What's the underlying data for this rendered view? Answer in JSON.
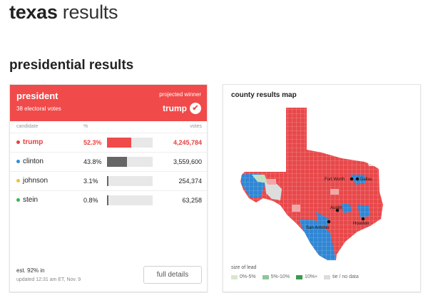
{
  "page": {
    "state": "texas",
    "results": "results",
    "section_title": "presidential results"
  },
  "race": {
    "title": "president",
    "electoral_votes": "38 electoral votes",
    "projected_label": "projected winner",
    "winner": "trump",
    "winner_color": "#f04a4a",
    "columns": {
      "candidate": "candidate",
      "pct": "%",
      "votes": "votes"
    },
    "candidates": [
      {
        "name": "trump",
        "pct": "52.3%",
        "votes": "4,245,784",
        "share": 0.523,
        "color": "#e8403f"
      },
      {
        "name": "clinton",
        "pct": "43.8%",
        "votes": "3,559,600",
        "share": 0.438,
        "color": "#2f8fd6"
      },
      {
        "name": "johnson",
        "pct": "3.1%",
        "votes": "254,374",
        "share": 0.031,
        "color": "#e8c53a"
      },
      {
        "name": "stein",
        "pct": "0.8%",
        "votes": "63,258",
        "share": 0.008,
        "color": "#3bb54a"
      }
    ],
    "reporting": "est. 92% in",
    "updated": "updated 12:31 am ET, Nov. 9",
    "full_details": "full details"
  },
  "map": {
    "title": "county results map",
    "cities": [
      "Fort Worth",
      "Dallas",
      "Austin",
      "Houston",
      "San Antonio"
    ],
    "legend_title": "size of lead",
    "legend": [
      {
        "label": "0%-5%",
        "color": "#d8e7cf"
      },
      {
        "label": "5%-10%",
        "color": "#8dc79a"
      },
      {
        "label": "10%+",
        "color": "#3c9a4b"
      },
      {
        "label": "tie / no data",
        "color": "#dcdcdc"
      }
    ]
  }
}
